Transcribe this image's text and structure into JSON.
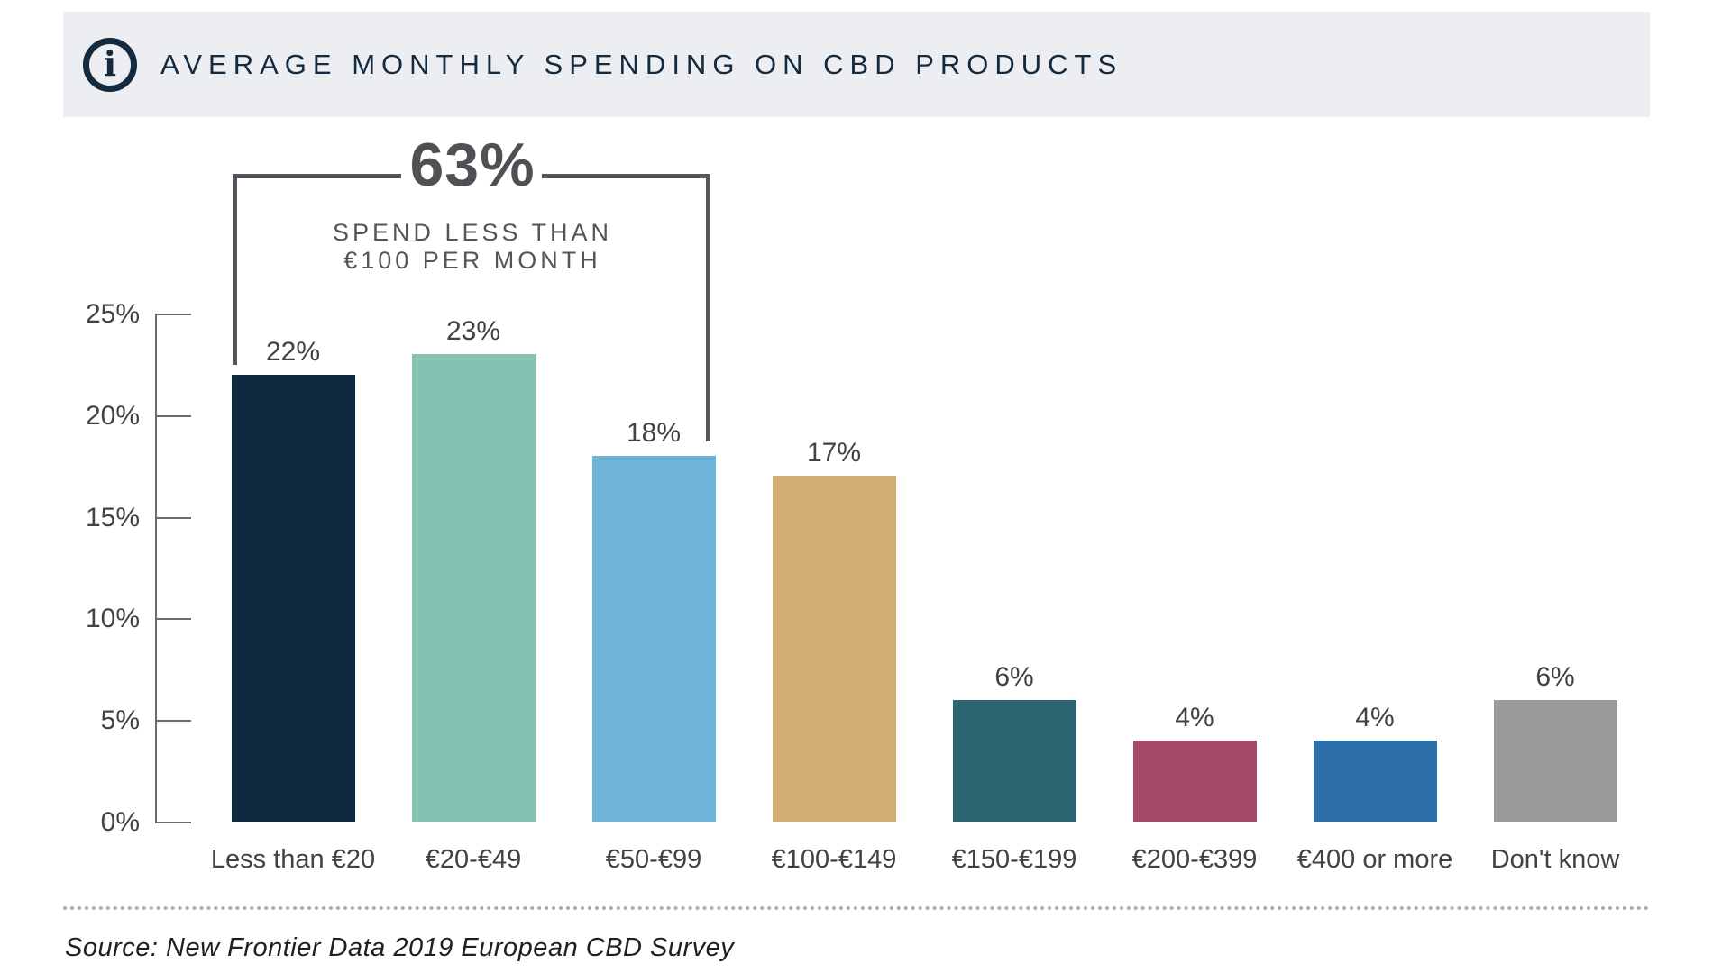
{
  "header": {
    "title": "AVERAGE MONTHLY SPENDING ON CBD PRODUCTS",
    "icon_glyph": "i"
  },
  "annotation": {
    "value": "63%",
    "line1": "SPEND LESS THAN",
    "line2": "€100 PER MONTH"
  },
  "chart_data": {
    "type": "bar",
    "title": "AVERAGE MONTHLY SPENDING ON CBD PRODUCTS",
    "categories": [
      "Less than €20",
      "€20-€49",
      "€50-€99",
      "€100-€149",
      "€150-€199",
      "€200-€399",
      "€400 or more",
      "Don't know"
    ],
    "values": [
      22,
      23,
      18,
      17,
      6,
      4,
      4,
      6
    ],
    "value_labels": [
      "22%",
      "23%",
      "18%",
      "17%",
      "6%",
      "4%",
      "4%",
      "6%"
    ],
    "bar_colors": [
      "#0e2940",
      "#82c4b1",
      "#6eb4d8",
      "#d3ae72",
      "#2d6471",
      "#a54a66",
      "#2c6fab",
      "#9b9a9a"
    ],
    "xlabel": "",
    "ylabel": "",
    "ylim": [
      0,
      25
    ],
    "yticks": [
      0,
      5,
      10,
      15,
      20,
      25
    ],
    "ytick_labels": [
      "0%",
      "5%",
      "10%",
      "15%",
      "20%",
      "25%"
    ],
    "grid": false,
    "legend": "none",
    "annotation": {
      "headline": "63%",
      "subtext": "SPEND LESS THAN €100 PER MONTH",
      "covers_categories": [
        "Less than €20",
        "€20-€49",
        "€50-€99"
      ]
    }
  },
  "footer": {
    "source": "Source: New Frontier Data 2019 European CBD Survey"
  },
  "colors": {
    "header_bg": "#eceef2",
    "header_text": "#142a3e",
    "annotation": "#54555a",
    "axis": "#6a6b6e",
    "labels": "#424245",
    "dotted_rule": "#ababab"
  }
}
